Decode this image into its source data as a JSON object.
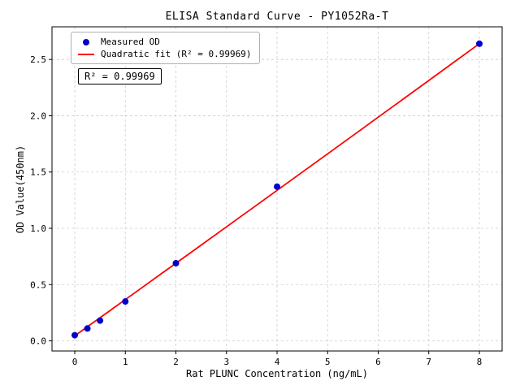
{
  "chart_data": {
    "type": "scatter",
    "title": "ELISA Standard Curve - PY1052Ra-T",
    "xlabel": "Rat PLUNC Concentration (ng/mL)",
    "ylabel": "OD Value(450nm)",
    "xlim": [
      -0.45,
      8.45
    ],
    "ylim": [
      -0.09,
      2.79
    ],
    "xticks": [
      0,
      1,
      2,
      3,
      4,
      5,
      6,
      7,
      8
    ],
    "yticks": [
      0.0,
      0.5,
      1.0,
      1.5,
      2.0,
      2.5
    ],
    "grid": true,
    "legend_position": "upper left",
    "annotation": "R² = 0.99969",
    "series": [
      {
        "name": "Measured OD",
        "type": "scatter",
        "color": "#0000cd",
        "x": [
          0,
          0.25,
          0.5,
          1,
          2,
          4,
          8
        ],
        "y": [
          0.05,
          0.11,
          0.18,
          0.35,
          0.69,
          1.37,
          2.64
        ]
      },
      {
        "name": "Quadratic fit (R² = 0.99969)",
        "type": "line",
        "color": "#ff0000",
        "fit": {
          "coeffs": [
            0.045,
            0.3216,
            0.00035
          ],
          "x_range": [
            0,
            8
          ]
        }
      }
    ]
  }
}
